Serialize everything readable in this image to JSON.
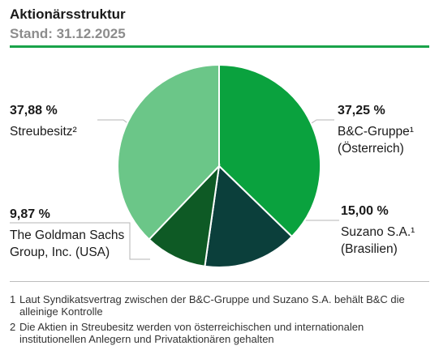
{
  "chart_data": {
    "type": "pie",
    "title": "Aktionärsstruktur",
    "subtitle": "Stand: 31.12.2025",
    "categories": [
      "B&C-Gruppe¹ (Österreich)",
      "Suzano S.A.¹ (Brasilien)",
      "The Goldman Sachs Group, Inc. (USA)",
      "Streubesitz²"
    ],
    "values": [
      37.25,
      15.0,
      9.87,
      37.88
    ],
    "value_labels": [
      "37,25 %",
      "15,00 %",
      "9,87 %",
      "37,88 %"
    ],
    "colors": [
      "#0aa23e",
      "#0b3f3b",
      "#0e5a25",
      "#6bc688"
    ],
    "footnotes": [
      {
        "marker": "1",
        "text": "Laut Syndikatsvertrag zwischen der B&C-Gruppe und Suzano S.A. behält B&C die alleinige Kontrolle"
      },
      {
        "marker": "2",
        "text": "Die Aktien in Streubesitz werden von österreichischen und internationalen institutionellen Anlegern und Privataktionären gehalten"
      }
    ]
  }
}
